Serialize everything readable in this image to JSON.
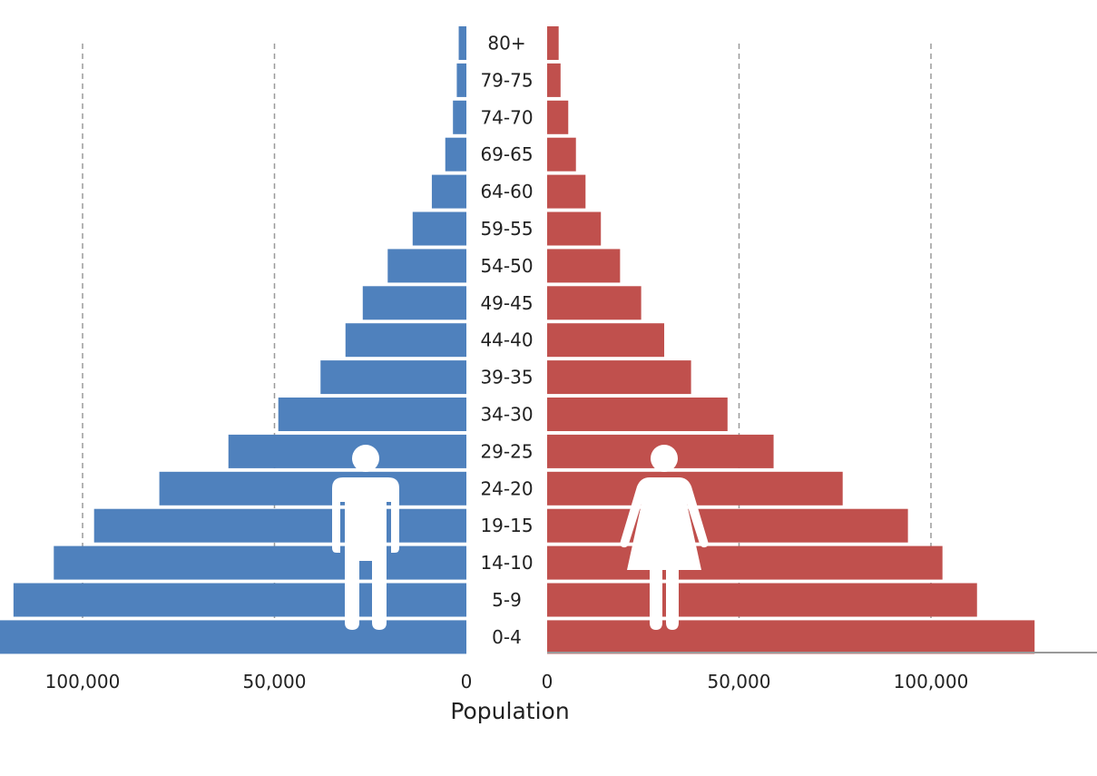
{
  "chart_data": {
    "type": "bar",
    "subtype": "population-pyramid",
    "title": "",
    "xlabel": "Population",
    "age_groups": [
      "80+",
      "79-75",
      "74-70",
      "69-65",
      "64-60",
      "59-55",
      "54-50",
      "49-45",
      "44-40",
      "39-35",
      "34-30",
      "29-25",
      "24-20",
      "19-15",
      "14-10",
      "5-9",
      "0-4"
    ],
    "series": [
      {
        "side": "left",
        "icon": "male-figure-icon",
        "color": "#4f81bd",
        "values": [
          2000,
          2500,
          3500,
          5500,
          9000,
          14000,
          20500,
          27000,
          31500,
          38000,
          49000,
          62000,
          80000,
          97000,
          107500,
          118000,
          122000
        ]
      },
      {
        "side": "right",
        "icon": "female-figure-icon",
        "color": "#c0504d",
        "values": [
          3000,
          3500,
          5500,
          7500,
          10000,
          14000,
          19000,
          24500,
          30500,
          37500,
          47000,
          59000,
          77000,
          94000,
          103000,
          112000,
          127000
        ]
      }
    ],
    "x_ticks": [
      0,
      50000,
      100000
    ],
    "x_tick_labels": [
      "0",
      "50,000",
      "100,000"
    ],
    "grid": "vertical-dashed"
  }
}
